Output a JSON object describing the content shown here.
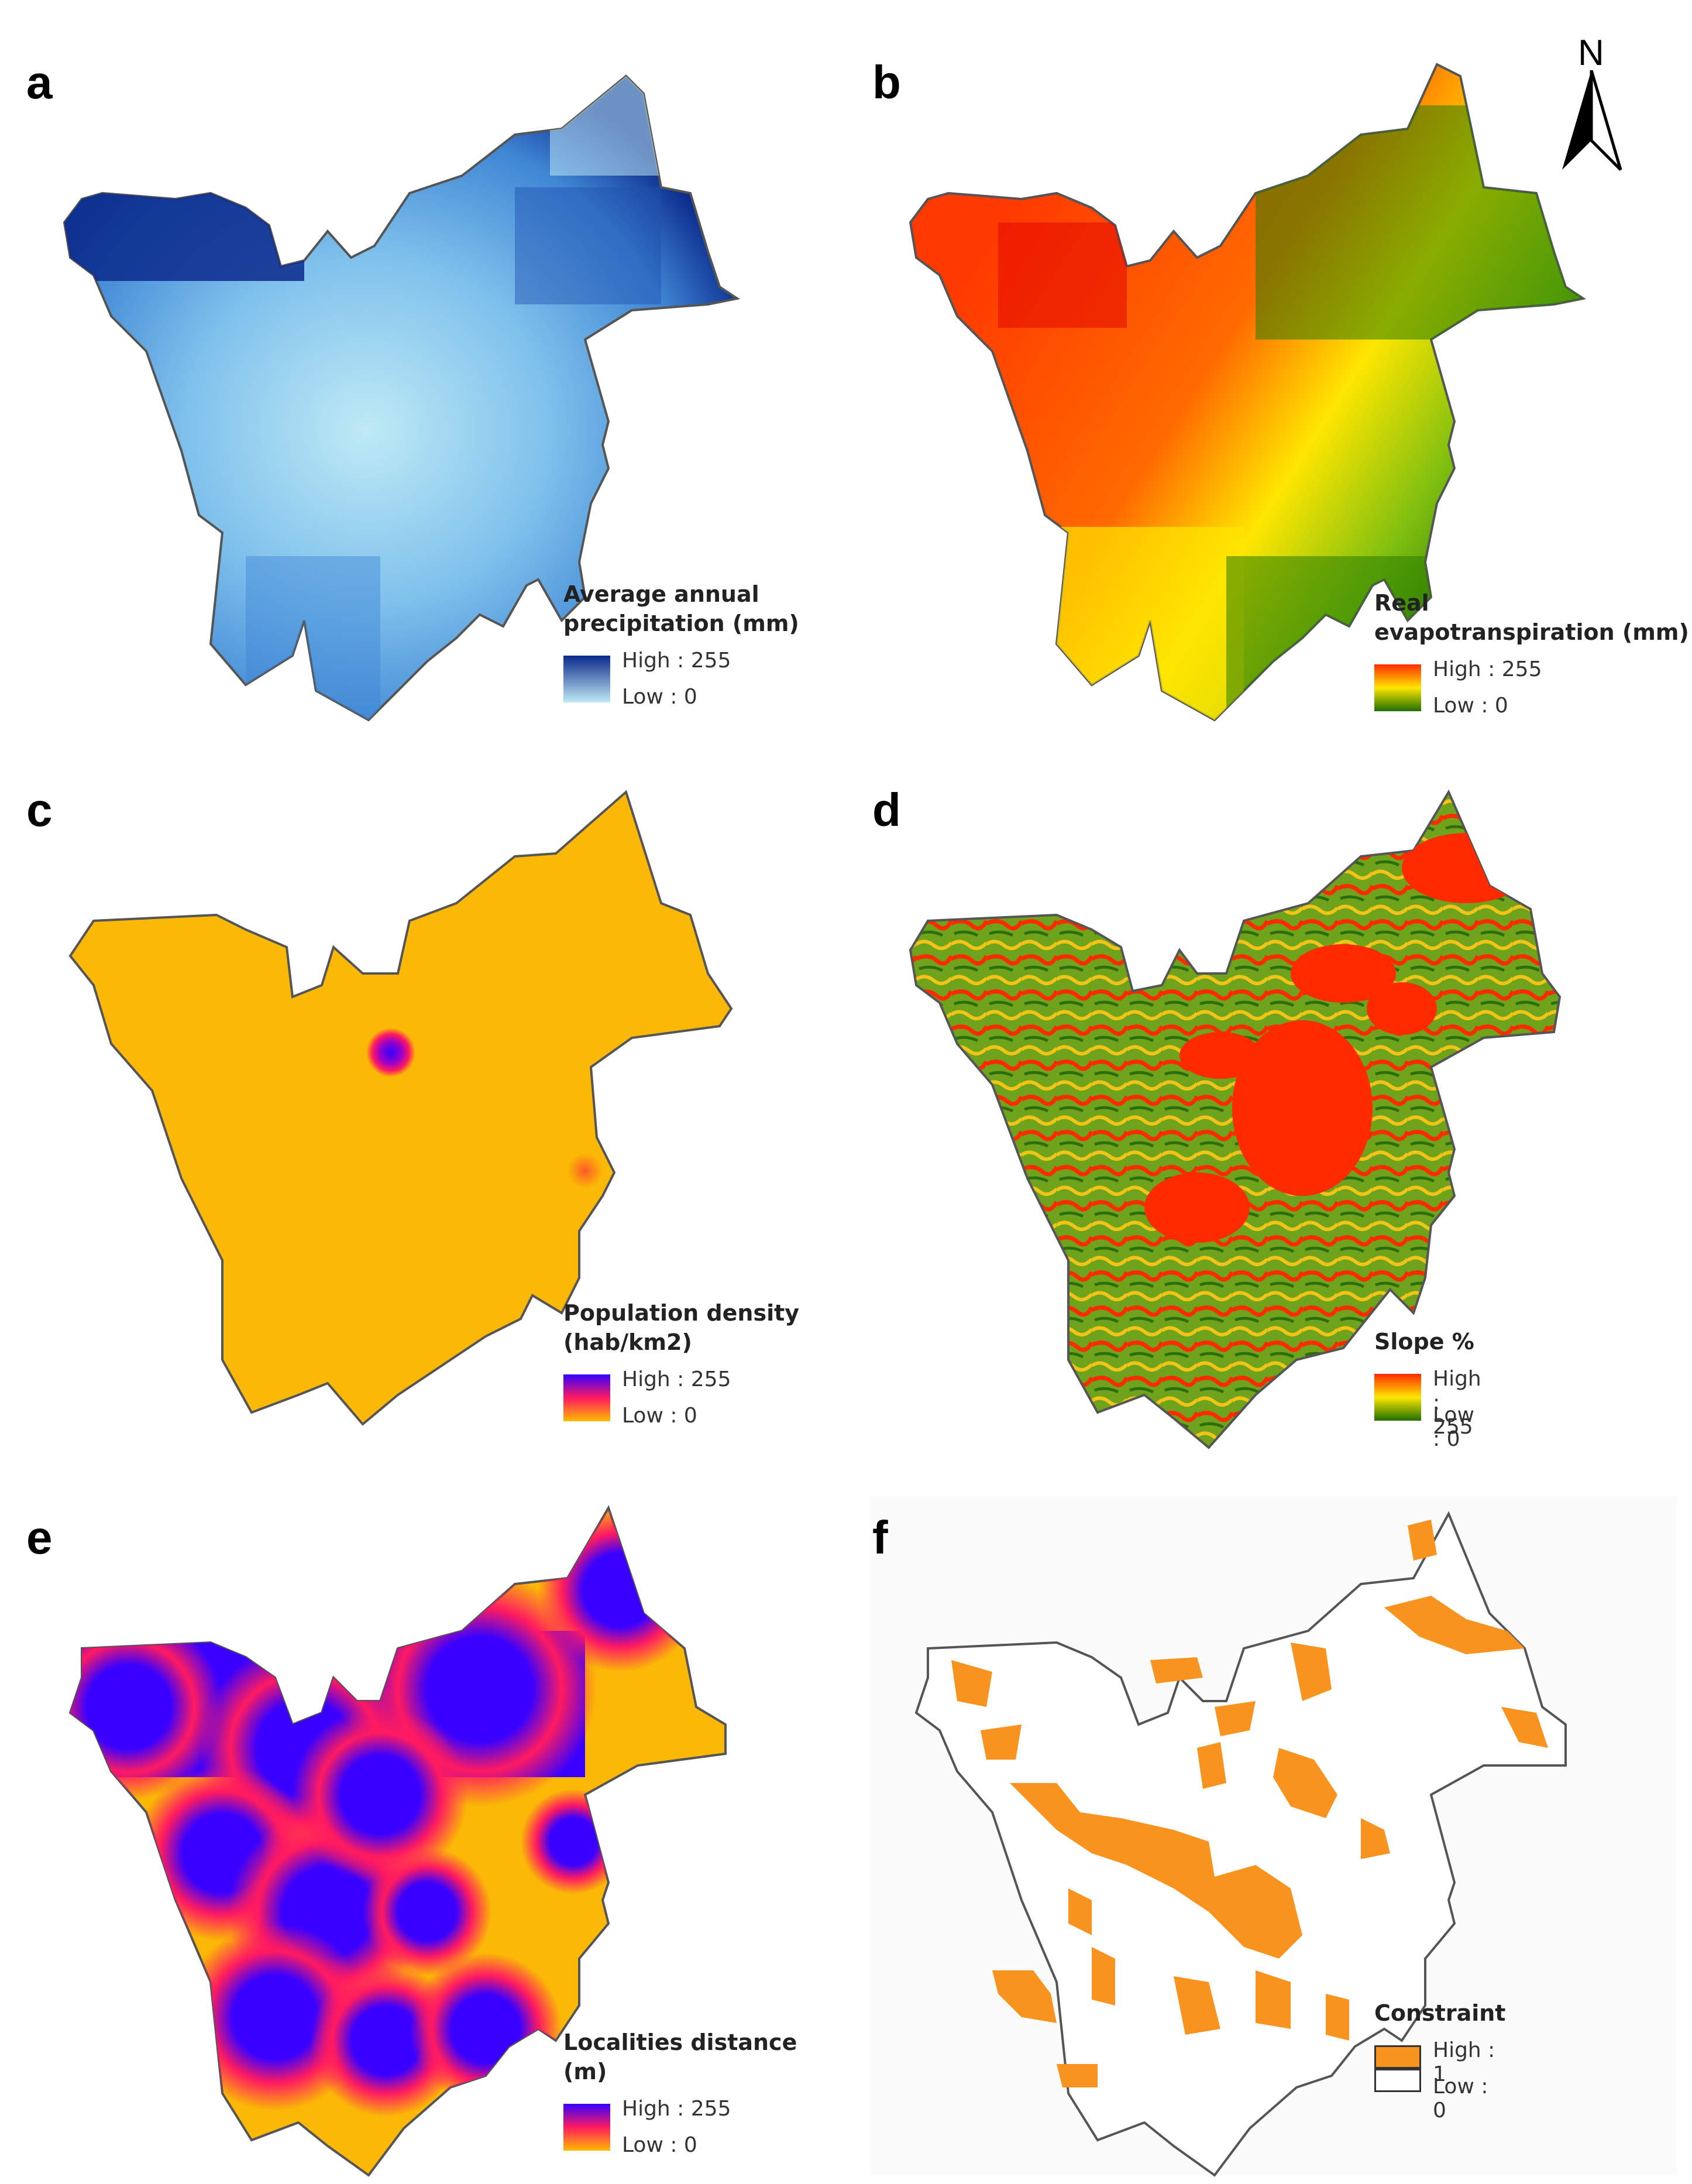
{
  "north_arrow": {
    "label": "N"
  },
  "panels": [
    {
      "letter": "a",
      "title_line1": "Average annual",
      "title_line2": "precipitation (mm)",
      "high_label": "High : 255",
      "low_label": "Low : 0",
      "ramp": [
        "#0b2a8c",
        "#bfeaf5"
      ],
      "fill": "#4e93d6"
    },
    {
      "letter": "b",
      "title_line1": "Real",
      "title_line2": "evapotranspiration (mm)",
      "high_label": "High : 255",
      "low_label": "Low : 0",
      "ramp": [
        "#ff2a00",
        "#ffe600",
        "#1e6e00"
      ],
      "fill": "#ff8c1a"
    },
    {
      "letter": "c",
      "title_line1": "Population density",
      "title_line2": "(hab/km2)",
      "high_label": "High : 255",
      "low_label": "Low : 0",
      "ramp": [
        "#3300ff",
        "#ff1a60",
        "#ffbb00"
      ],
      "fill": "#fbb806"
    },
    {
      "letter": "d",
      "title_line1": "Slope %",
      "title_line2": "",
      "high_label": "High : 255",
      "low_label": "Low : 0",
      "ramp": [
        "#ff2a00",
        "#ffe600",
        "#1e6e00"
      ],
      "fill": "#6fa31c"
    },
    {
      "letter": "e",
      "title_line1": "Localities distance (m)",
      "title_line2": "",
      "high_label": "High : 255",
      "low_label": "Low : 0",
      "ramp": [
        "#3300ff",
        "#ff1a60",
        "#ffbb00"
      ],
      "fill": "#f72fa0"
    },
    {
      "letter": "f",
      "title_line1": "Constraint",
      "title_line2": "",
      "high_label": "High : 1",
      "low_label": "Low : 0",
      "ramp": [
        "#f7931e",
        "#ffffff"
      ],
      "fill": "#ffffff"
    }
  ]
}
